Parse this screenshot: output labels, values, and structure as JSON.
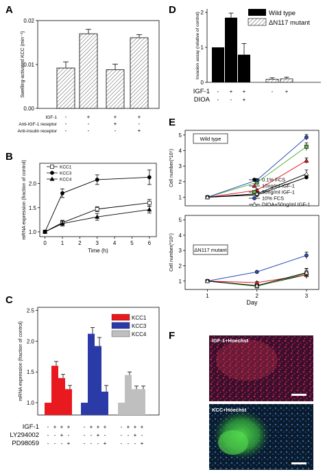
{
  "panels": {
    "A": "A",
    "B": "B",
    "C": "C",
    "D": "D",
    "E": "E",
    "F": "F"
  },
  "chart_data": [
    {
      "panel": "A",
      "type": "bar",
      "ylabel": "Swelling-activated KCC (min⁻¹)",
      "ylim": [
        0,
        0.02
      ],
      "yticks": [
        "0.00",
        "0.01",
        "0.02"
      ],
      "values": [
        0.0092,
        0.017,
        0.0088,
        0.0161
      ],
      "errors": [
        0.0014,
        0.001,
        0.0013,
        0.0007
      ],
      "treatment_rows": [
        {
          "label": "IGF-1",
          "signs": [
            "-",
            "+",
            "+",
            "+"
          ]
        },
        {
          "label": "Anti-IGF-1 receptor",
          "signs": [
            "-",
            "-",
            "+",
            "-"
          ]
        },
        {
          "label": "Anti-insulin receptor",
          "signs": [
            "-",
            "-",
            "-",
            "+"
          ]
        }
      ]
    },
    {
      "panel": "B",
      "type": "line",
      "xlabel": "Time (h)",
      "ylabel": "mRNA expression (fraction of control)",
      "xticks": [
        "0",
        "1",
        "2",
        "3",
        "4",
        "5",
        "6"
      ],
      "yticks": [
        "1.0",
        "1.5",
        "2.0"
      ],
      "xlim": [
        -0.3,
        6.4
      ],
      "ylim": [
        0.9,
        2.42
      ],
      "x": [
        0,
        1,
        3,
        6
      ],
      "series": [
        {
          "name": "KCC1",
          "values": [
            1.0,
            1.19,
            1.47,
            1.6
          ],
          "errors": [
            0.03,
            0.05,
            0.05,
            0.07
          ]
        },
        {
          "name": "KCC3",
          "values": [
            1.0,
            1.8,
            2.08,
            2.13
          ],
          "errors": [
            0.03,
            0.09,
            0.1,
            0.15
          ]
        },
        {
          "name": "KCC4",
          "values": [
            1.0,
            1.17,
            1.31,
            1.46
          ],
          "errors": [
            0.03,
            0.05,
            0.07,
            0.07
          ]
        }
      ]
    },
    {
      "panel": "C",
      "type": "bar",
      "ylabel": "mRNA expression (fraction of control)",
      "ylim": [
        0.8,
        2.55
      ],
      "yticks": [
        "1.0",
        "1.5",
        "2.0",
        "2.5"
      ],
      "series": [
        {
          "name": "KCC1",
          "color": "#e8191f",
          "values": [
            1.0,
            1.6,
            1.4,
            1.22
          ],
          "errors": [
            0,
            0.07,
            0.06,
            0.06
          ]
        },
        {
          "name": "KCC3",
          "color": "#2a3aa7",
          "values": [
            1.0,
            2.12,
            1.92,
            1.18
          ],
          "errors": [
            0,
            0.1,
            0.14,
            0.1
          ]
        },
        {
          "name": "KCC4",
          "color": "#bfbfbf",
          "values": [
            1.0,
            1.45,
            1.22,
            1.22
          ],
          "errors": [
            0,
            0.05,
            0.05,
            0.05
          ]
        }
      ],
      "treatment_rows": [
        {
          "label": "IGF-1",
          "signs": [
            "-",
            "+",
            "+",
            "+"
          ]
        },
        {
          "label": "LY294002",
          "signs": [
            "-",
            "-",
            "+",
            "-"
          ]
        },
        {
          "label": "PD98059",
          "signs": [
            "-",
            "-",
            "-",
            "+"
          ]
        }
      ]
    },
    {
      "panel": "D",
      "type": "bar",
      "ylabel": "Invasion assay (relative of control)",
      "ylim": [
        0,
        2.1
      ],
      "yticks": [
        "0",
        "1",
        "2"
      ],
      "series": [
        {
          "name": "Wild type",
          "values": [
            1.0,
            1.85,
            0.79
          ],
          "errors": [
            0,
            0.13,
            0.32
          ]
        },
        {
          "name": "ΔN117 mutant",
          "values": [
            0.09,
            0.1
          ],
          "errors": [
            0.04,
            0.05
          ]
        }
      ],
      "treatment_rows": [
        {
          "label": "IGF-1",
          "signs": [
            "-",
            "+",
            "+",
            "-",
            "+"
          ]
        },
        {
          "label": "DIOA",
          "signs": [
            "-",
            "-",
            "+"
          ]
        }
      ]
    },
    {
      "panel": "E",
      "type": "line",
      "ylabel": "Cell number(*10⁵)",
      "xlabel": "Day",
      "xticks": [
        "1",
        "2",
        "3"
      ],
      "yticks": [
        "0",
        "1",
        "2",
        "3",
        "4",
        "5"
      ],
      "x": [
        1,
        2,
        3
      ],
      "legend": [
        "0.1% FCS",
        "10ng/ml IGF-1",
        "50ng/ml IGF-1",
        "10% FCS",
        "DIOA+50ng/ml IGF-1"
      ],
      "subplots": [
        {
          "label": "Wild  type",
          "ylim": [
            0.45,
            5.3
          ],
          "series": [
            {
              "name": "0.1% FCS",
              "color": "#000000",
              "values": [
                1.0,
                1.15,
                2.28
              ],
              "errors": [
                0.03,
                0.08,
                0.12
              ]
            },
            {
              "name": "10ng/ml IGF-1",
              "color": "#e8191f",
              "values": [
                1.0,
                1.45,
                3.35
              ],
              "errors": [
                0.03,
                0.08,
                0.18
              ]
            },
            {
              "name": "50ng/ml IGF-1",
              "color": "#5ab443",
              "values": [
                1.0,
                1.95,
                4.25
              ],
              "errors": [
                0.03,
                0.08,
                0.25
              ]
            },
            {
              "name": "10% FCS",
              "color": "#2a4bb5",
              "values": [
                1.0,
                2.1,
                4.85
              ],
              "errors": [
                0.03,
                0.08,
                0.18
              ]
            },
            {
              "name": "DIOA+50ng/ml IGF-1",
              "color": "#000000",
              "values": [
                1.0,
                1.22,
                2.5
              ],
              "errors": [
                0.03,
                0.08,
                0.25
              ]
            }
          ]
        },
        {
          "label": "ΔN117 mutant",
          "ylim": [
            0.45,
            5.3
          ],
          "series": [
            {
              "name": "0.1% FCS",
              "color": "#000000",
              "values": [
                1.0,
                0.68,
                1.42
              ],
              "errors": [
                0.03,
                0.06,
                0.25
              ]
            },
            {
              "name": "10ng/ml IGF-1",
              "color": "#e8191f",
              "values": [
                1.0,
                0.9,
                1.4
              ],
              "errors": [
                0.03,
                0.06,
                0.22
              ]
            },
            {
              "name": "50ng/ml IGF-1",
              "color": "#5ab443",
              "values": [
                1.0,
                0.65,
                1.5
              ],
              "errors": [
                0.03,
                0.06,
                0.3
              ]
            },
            {
              "name": "10% FCS",
              "color": "#2a4bb5",
              "values": [
                1.0,
                1.6,
                2.68
              ],
              "errors": [
                0.03,
                0.06,
                0.22
              ]
            },
            {
              "name": "DIOA+50ng/ml IGF-1",
              "color": "#000000",
              "values": [
                1.0,
                0.7,
                1.55
              ],
              "errors": [
                0.03,
                0.06,
                0.28
              ]
            }
          ]
        }
      ]
    }
  ],
  "panelF": {
    "top_label": "IGF-1+Hoechst",
    "bottom_label": "KCC+Hoechst"
  }
}
